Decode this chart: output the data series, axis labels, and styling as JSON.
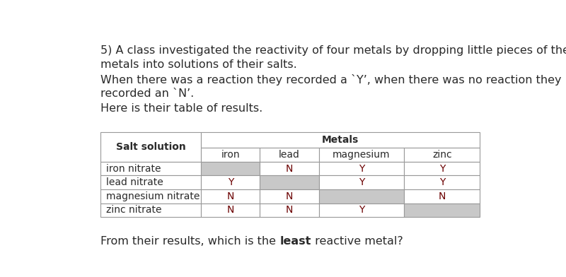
{
  "intro_lines": [
    "5) A class investigated the reactivity of four metals by dropping little pieces of the",
    "metals into solutions of their salts.",
    "When there was a reaction they recorded a `Y’, when there was no reaction they",
    "recorded an `N’.",
    "Here is their table of results."
  ],
  "footer_text_normal": "From their results, which is the ",
  "footer_text_bold": "least",
  "footer_text_end": " reactive metal?",
  "col_header_main": "Metals",
  "col_header_sub": [
    "iron",
    "lead",
    "magnesium",
    "zinc"
  ],
  "row_header": "Salt solution",
  "rows": [
    {
      "label": "iron nitrate",
      "values": [
        "",
        "N",
        "Y",
        "Y"
      ]
    },
    {
      "label": "lead nitrate",
      "values": [
        "Y",
        "",
        "Y",
        "Y"
      ]
    },
    {
      "label": "magnesium nitrate",
      "values": [
        "N",
        "N",
        "",
        "N"
      ]
    },
    {
      "label": "zinc nitrate",
      "values": [
        "N",
        "N",
        "Y",
        ""
      ]
    }
  ],
  "grey_color": "#c8c8c8",
  "border_color": "#999999",
  "text_color": "#2a2a2a",
  "yn_color": "#6b0000",
  "header_color": "#2a2a2a",
  "background": "#ffffff",
  "intro_fontsize": 11.5,
  "table_fontsize": 10.0,
  "footer_fontsize": 11.5
}
